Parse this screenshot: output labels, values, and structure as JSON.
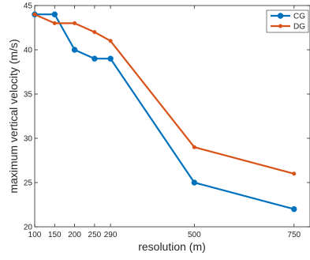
{
  "chart_data": {
    "type": "line",
    "title": "",
    "xlabel": "resolution (m)",
    "ylabel": "maximum vertical velocity (m/s)",
    "x": [
      100,
      150,
      200,
      250,
      290,
      500,
      750
    ],
    "xticks": [
      100,
      150,
      200,
      250,
      290,
      500,
      750
    ],
    "xlim": [
      100,
      790
    ],
    "yticks": [
      20,
      25,
      30,
      35,
      40,
      45
    ],
    "ylim": [
      20,
      45
    ],
    "grid": false,
    "legend_position": "top-right",
    "series": [
      {
        "name": "CG",
        "color": "#0072BD",
        "marker": "circle",
        "x": [
          100,
          150,
          200,
          250,
          290,
          500,
          750
        ],
        "values": [
          44,
          44,
          40,
          39,
          39,
          25,
          22
        ]
      },
      {
        "name": "DG",
        "color": "#D95319",
        "marker": "dot",
        "x": [
          100,
          150,
          200,
          250,
          290,
          500,
          750
        ],
        "values": [
          44,
          43,
          43,
          42,
          41,
          29,
          26
        ]
      }
    ]
  }
}
